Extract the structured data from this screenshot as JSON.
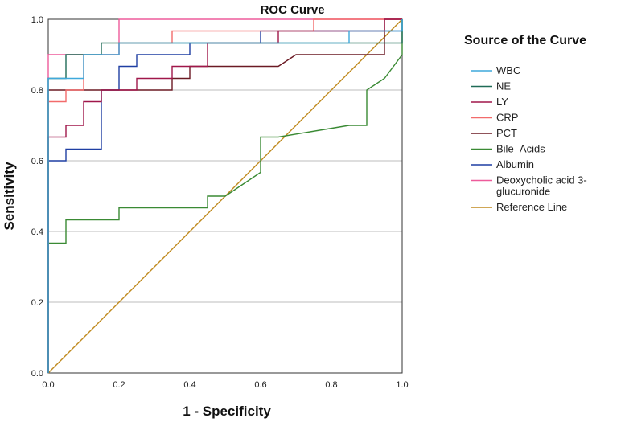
{
  "chart_data": {
    "type": "line",
    "title": "ROC Curve",
    "xlabel": "1 - Specificity",
    "ylabel": "Sensitivity",
    "xlim": [
      0,
      1
    ],
    "ylim": [
      0,
      1
    ],
    "x_ticks": [
      "0.0",
      "0.2",
      "0.4",
      "0.6",
      "0.8",
      "1.0"
    ],
    "y_ticks": [
      "0.0",
      "0.2",
      "0.4",
      "0.6",
      "0.8",
      "1.0"
    ],
    "grid": "horizontal",
    "legend_title": "Source of the Curve",
    "legend_position": "right",
    "series": [
      {
        "name": "WBC",
        "color": "#3fa9dc",
        "points": [
          [
            0,
            0
          ],
          [
            0,
            0.8
          ],
          [
            0,
            0.833
          ],
          [
            0.1,
            0.833
          ],
          [
            0.1,
            0.9
          ],
          [
            0.2,
            0.9
          ],
          [
            0.2,
            0.933
          ],
          [
            0.55,
            0.933
          ],
          [
            0.55,
            0.933
          ],
          [
            0.85,
            0.933
          ],
          [
            0.85,
            0.967
          ],
          [
            1,
            0.967
          ],
          [
            1,
            1
          ]
        ]
      },
      {
        "name": "NE",
        "color": "#1f6b57",
        "points": [
          [
            0,
            0
          ],
          [
            0,
            0.833
          ],
          [
            0.05,
            0.833
          ],
          [
            0.05,
            0.9
          ],
          [
            0.15,
            0.9
          ],
          [
            0.15,
            0.933
          ],
          [
            0.25,
            0.933
          ],
          [
            1,
            0.933
          ],
          [
            1,
            1
          ]
        ]
      },
      {
        "name": "LY",
        "color": "#a0174a",
        "points": [
          [
            0,
            0
          ],
          [
            0,
            0.667
          ],
          [
            0.05,
            0.667
          ],
          [
            0.05,
            0.7
          ],
          [
            0.1,
            0.7
          ],
          [
            0.1,
            0.767
          ],
          [
            0.15,
            0.767
          ],
          [
            0.15,
            0.8
          ],
          [
            0.25,
            0.8
          ],
          [
            0.25,
            0.833
          ],
          [
            0.35,
            0.833
          ],
          [
            0.35,
            0.867
          ],
          [
            0.45,
            0.867
          ],
          [
            0.45,
            0.933
          ],
          [
            0.65,
            0.933
          ],
          [
            0.65,
            0.967
          ],
          [
            0.95,
            0.967
          ],
          [
            0.95,
            1
          ],
          [
            1,
            1
          ]
        ]
      },
      {
        "name": "CRP",
        "color": "#f26b6b",
        "points": [
          [
            0,
            0
          ],
          [
            0,
            0.767
          ],
          [
            0.05,
            0.767
          ],
          [
            0.05,
            0.8
          ],
          [
            0.1,
            0.8
          ],
          [
            0.1,
            0.9
          ],
          [
            0.2,
            0.9
          ],
          [
            0.2,
            0.933
          ],
          [
            0.35,
            0.933
          ],
          [
            0.35,
            0.967
          ],
          [
            0.75,
            0.967
          ],
          [
            0.75,
            1
          ],
          [
            1,
            1
          ]
        ]
      },
      {
        "name": "PCT",
        "color": "#6b1a24",
        "points": [
          [
            0,
            0
          ],
          [
            0,
            0.8
          ],
          [
            0.35,
            0.8
          ],
          [
            0.35,
            0.833
          ],
          [
            0.4,
            0.833
          ],
          [
            0.4,
            0.867
          ],
          [
            0.65,
            0.867
          ],
          [
            0.65,
            0.867
          ],
          [
            0.7,
            0.9
          ],
          [
            0.95,
            0.9
          ],
          [
            0.95,
            1
          ],
          [
            1,
            1
          ]
        ]
      },
      {
        "name": "Bile_Acids",
        "color": "#3a8a34",
        "points": [
          [
            0,
            0
          ],
          [
            0,
            0.367
          ],
          [
            0.05,
            0.367
          ],
          [
            0.05,
            0.433
          ],
          [
            0.2,
            0.433
          ],
          [
            0.2,
            0.467
          ],
          [
            0.45,
            0.467
          ],
          [
            0.45,
            0.5
          ],
          [
            0.5,
            0.5
          ],
          [
            0.6,
            0.567
          ],
          [
            0.6,
            0.667
          ],
          [
            0.65,
            0.667
          ],
          [
            0.85,
            0.7
          ],
          [
            0.9,
            0.7
          ],
          [
            0.9,
            0.8
          ],
          [
            0.95,
            0.833
          ],
          [
            1,
            0.9
          ],
          [
            1,
            1
          ]
        ]
      },
      {
        "name": "Albumin",
        "color": "#1f3fa3",
        "points": [
          [
            0,
            0
          ],
          [
            0,
            0.6
          ],
          [
            0.05,
            0.6
          ],
          [
            0.05,
            0.633
          ],
          [
            0.15,
            0.633
          ],
          [
            0.15,
            0.8
          ],
          [
            0.2,
            0.8
          ],
          [
            0.2,
            0.867
          ],
          [
            0.25,
            0.867
          ],
          [
            0.25,
            0.9
          ],
          [
            0.4,
            0.9
          ],
          [
            0.4,
            0.933
          ],
          [
            0.6,
            0.933
          ],
          [
            0.6,
            0.967
          ],
          [
            1,
            0.967
          ],
          [
            1,
            1
          ]
        ]
      },
      {
        "name": "Deoxycholic acid 3-glucuronide",
        "legend_lines": [
          "Deoxycholic acid 3-",
          "glucuronide"
        ],
        "color": "#ee5b9b",
        "points": [
          [
            0,
            0
          ],
          [
            0,
            0.9
          ],
          [
            0.2,
            0.9
          ],
          [
            0.2,
            1
          ],
          [
            1,
            1
          ]
        ]
      },
      {
        "name": "Reference Line",
        "color": "#c08a1e",
        "points": [
          [
            0,
            0
          ],
          [
            1,
            1
          ]
        ]
      }
    ]
  }
}
